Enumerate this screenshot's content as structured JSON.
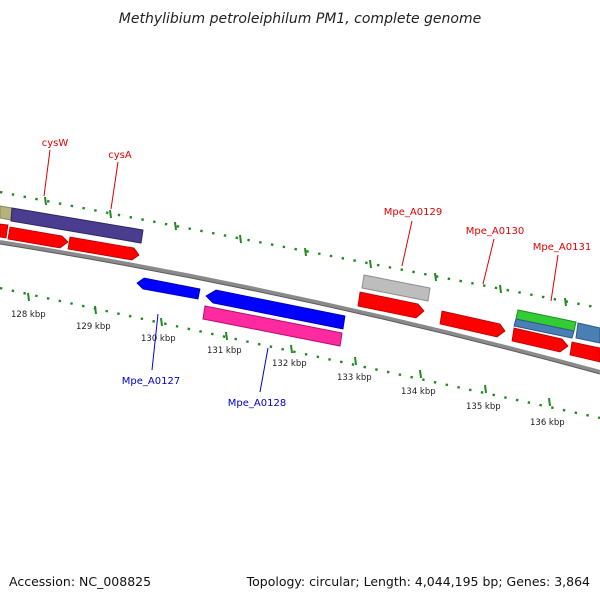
{
  "title": "Methylibium petroleiphilum PM1, complete genome",
  "footer": {
    "accession": "Accession: NC_008825",
    "topology": "Topology: circular; Length: 4,044,195 bp; Genes: 3,864"
  },
  "colors": {
    "forward_cds": "#ff0000",
    "reverse_cds": "#0000ff",
    "rna_pink": "#ff2aa0",
    "gene_purple": "#4a3d8f",
    "gene_olive": "#b5b27a",
    "gene_grey": "#bdbdbd",
    "gene_green": "#33cc33",
    "gene_steelblue": "#4a7fb5",
    "backbone": "#8a8a8a",
    "ticks": "#228822",
    "label_red": "#e00000",
    "label_blue": "#0000cc"
  },
  "tick_labels": [
    "128 kbp",
    "129 kbp",
    "130 kbp",
    "131 kbp",
    "132 kbp",
    "133 kbp",
    "134 kbp",
    "135 kbp",
    "136 kbp"
  ],
  "gene_labels": [
    {
      "text": "cysW",
      "strand": "forward"
    },
    {
      "text": "cysA",
      "strand": "forward"
    },
    {
      "text": "Mpe_A0129",
      "strand": "forward"
    },
    {
      "text": "Mpe_A0130",
      "strand": "forward"
    },
    {
      "text": "Mpe_A0131",
      "strand": "forward"
    },
    {
      "text": "Mpe_A0127",
      "strand": "reverse"
    },
    {
      "text": "Mpe_A0128",
      "strand": "reverse"
    }
  ]
}
